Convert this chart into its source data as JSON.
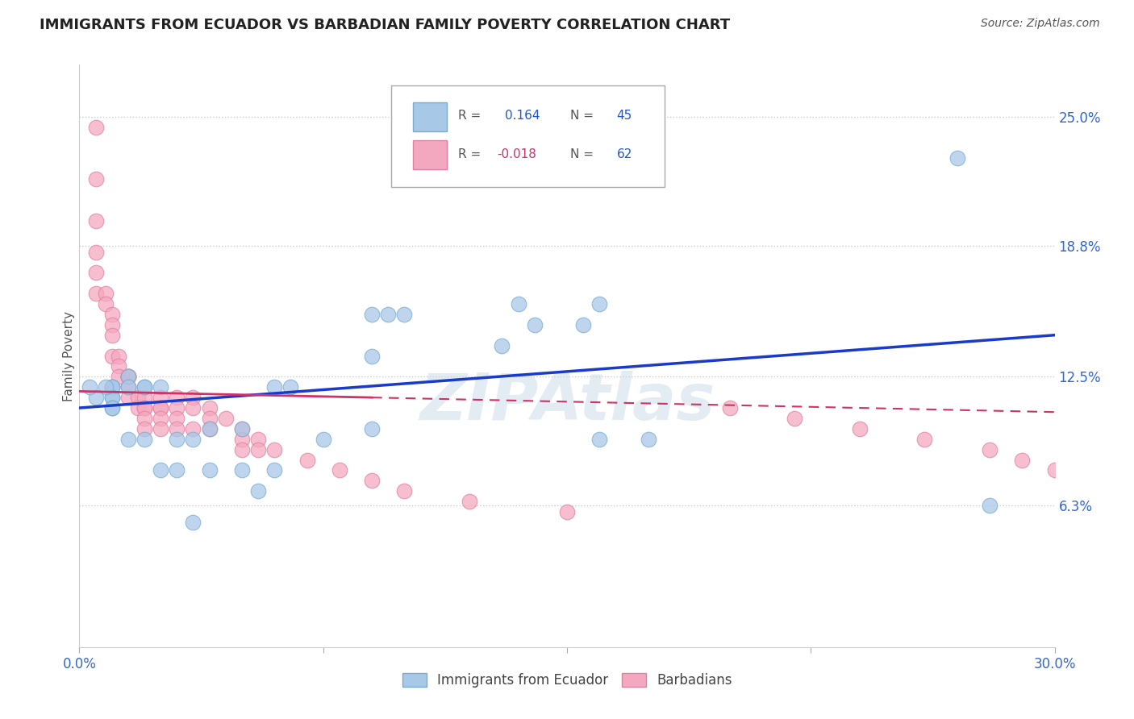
{
  "title": "IMMIGRANTS FROM ECUADOR VS BARBADIAN FAMILY POVERTY CORRELATION CHART",
  "source": "Source: ZipAtlas.com",
  "ylabel": "Family Poverty",
  "xlim": [
    0.0,
    0.3
  ],
  "ylim": [
    -0.005,
    0.275
  ],
  "ytick_labels_right": [
    "6.3%",
    "12.5%",
    "18.8%",
    "25.0%"
  ],
  "ytick_values_right": [
    0.063,
    0.125,
    0.188,
    0.25
  ],
  "r_ecuador": 0.164,
  "n_ecuador": 45,
  "r_barbadian": -0.018,
  "n_barbadian": 62,
  "blue_color": "#a8c8e8",
  "pink_color": "#f4a8c0",
  "blue_edge_color": "#7aaad0",
  "pink_edge_color": "#e080a0",
  "blue_line_color": "#1a3acc",
  "pink_line_color": "#cc3366",
  "grid_color": "#cccccc",
  "background_color": "#ffffff",
  "watermark": "ZIPAtlas",
  "ecuador_x": [
    0.27,
    0.28,
    0.16,
    0.135,
    0.16,
    0.175,
    0.14,
    0.155,
    0.13,
    0.095,
    0.1,
    0.09,
    0.09,
    0.09,
    0.075,
    0.065,
    0.06,
    0.06,
    0.055,
    0.05,
    0.05,
    0.04,
    0.04,
    0.035,
    0.035,
    0.03,
    0.03,
    0.025,
    0.025,
    0.02,
    0.02,
    0.02,
    0.015,
    0.015,
    0.015,
    0.01,
    0.01,
    0.01,
    0.01,
    0.01,
    0.01,
    0.01,
    0.008,
    0.005,
    0.003
  ],
  "ecuador_y": [
    0.23,
    0.063,
    0.16,
    0.16,
    0.095,
    0.095,
    0.15,
    0.15,
    0.14,
    0.155,
    0.155,
    0.155,
    0.135,
    0.1,
    0.095,
    0.12,
    0.12,
    0.08,
    0.07,
    0.1,
    0.08,
    0.1,
    0.08,
    0.055,
    0.095,
    0.095,
    0.08,
    0.08,
    0.12,
    0.12,
    0.12,
    0.095,
    0.125,
    0.12,
    0.095,
    0.12,
    0.12,
    0.12,
    0.115,
    0.115,
    0.11,
    0.11,
    0.12,
    0.115,
    0.12
  ],
  "barbadian_x": [
    0.005,
    0.005,
    0.005,
    0.005,
    0.005,
    0.005,
    0.008,
    0.008,
    0.01,
    0.01,
    0.01,
    0.01,
    0.012,
    0.012,
    0.012,
    0.015,
    0.015,
    0.015,
    0.015,
    0.015,
    0.018,
    0.018,
    0.02,
    0.02,
    0.02,
    0.02,
    0.02,
    0.025,
    0.025,
    0.025,
    0.025,
    0.025,
    0.03,
    0.03,
    0.03,
    0.03,
    0.035,
    0.035,
    0.035,
    0.04,
    0.04,
    0.04,
    0.045,
    0.05,
    0.05,
    0.05,
    0.055,
    0.055,
    0.06,
    0.07,
    0.08,
    0.09,
    0.1,
    0.12,
    0.15,
    0.2,
    0.22,
    0.24,
    0.26,
    0.28,
    0.29,
    0.3
  ],
  "barbadian_y": [
    0.245,
    0.22,
    0.2,
    0.185,
    0.175,
    0.165,
    0.165,
    0.16,
    0.155,
    0.15,
    0.145,
    0.135,
    0.135,
    0.13,
    0.125,
    0.125,
    0.125,
    0.125,
    0.12,
    0.115,
    0.115,
    0.11,
    0.115,
    0.11,
    0.11,
    0.105,
    0.1,
    0.115,
    0.11,
    0.11,
    0.105,
    0.1,
    0.115,
    0.11,
    0.105,
    0.1,
    0.115,
    0.11,
    0.1,
    0.11,
    0.105,
    0.1,
    0.105,
    0.1,
    0.095,
    0.09,
    0.095,
    0.09,
    0.09,
    0.085,
    0.08,
    0.075,
    0.07,
    0.065,
    0.06,
    0.11,
    0.105,
    0.1,
    0.095,
    0.09,
    0.085,
    0.08
  ]
}
